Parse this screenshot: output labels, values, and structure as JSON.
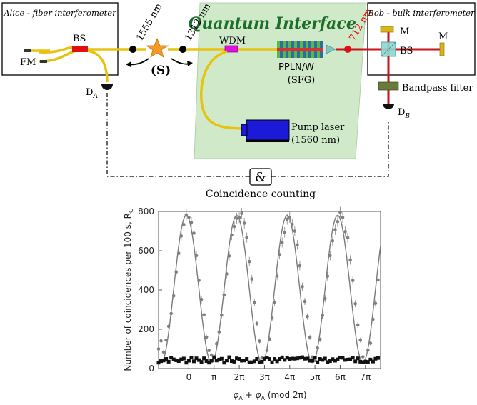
{
  "setup": {
    "alice_title": "Alice - fiber interferometer",
    "bob_title": "Bob - bulk interferometer",
    "interface_title": "Quantum Interface",
    "fm": "FM",
    "bs_alice": "BS",
    "bs_bob": "BS",
    "mirror_top": "M",
    "mirror_right": "M",
    "detector_a": "D",
    "detector_a_sub": "A",
    "detector_b": "D",
    "detector_b_sub": "B",
    "wl_1555": "1555 nm",
    "wl_1312": "1312 nm",
    "wl_712": "712 nm",
    "source_label": "(S)",
    "wdm": "WDM",
    "ppln_line1": "PPLN/W",
    "ppln_line2": "(SFG)",
    "pump_line1": "Pump laser",
    "pump_line2": "(1560 nm)",
    "bandpass": "Bandpass filter",
    "and_symbol": "&",
    "coincidence": "Coincidence counting"
  },
  "chart_data": {
    "type": "scatter",
    "title": "",
    "ylabel": "Number of coincidences per 100 s, R",
    "ylabel_sub": "C",
    "xlabel": "φA + φA (mod 2π)",
    "xlabel_parts": [
      "φ",
      "A",
      " + ",
      "φ",
      "A",
      " (mod 2π)"
    ],
    "xunit": "pi",
    "xlim": [
      -1.2,
      7.6
    ],
    "ylim": [
      0,
      800
    ],
    "xticks": [
      0,
      1,
      2,
      3,
      4,
      5,
      6,
      7
    ],
    "xtick_labels": [
      "0",
      "π",
      "2π",
      "3π",
      "4π",
      "5π",
      "6π",
      "7π"
    ],
    "yticks": [
      0,
      200,
      400,
      600,
      800
    ],
    "ytick_labels": [
      "0",
      "200",
      "400",
      "600",
      "800"
    ],
    "grid": false,
    "series": [
      {
        "marker": "circle",
        "color": "#808080",
        "fit": {
          "offset": 405,
          "amplitude": 375,
          "phase_shift_pi": -0.1
        },
        "x": [
          -1.2,
          -1.1,
          -1.0,
          -0.9,
          -0.8,
          -0.7,
          -0.6,
          -0.5,
          -0.4,
          -0.3,
          -0.2,
          -0.1,
          0.0,
          0.1,
          0.2,
          0.3,
          0.4,
          0.5,
          0.6,
          0.7,
          0.8,
          0.9,
          1.0,
          1.1,
          1.2,
          1.3,
          1.4,
          1.5,
          1.6,
          1.7,
          1.8,
          1.9,
          2.0,
          2.1,
          2.2,
          2.3,
          2.4,
          2.5,
          2.6,
          2.7,
          2.8,
          2.9,
          3.0,
          3.1,
          3.2,
          3.3,
          3.4,
          3.5,
          3.6,
          3.7,
          3.8,
          3.9,
          4.0,
          4.1,
          4.2,
          4.3,
          4.4,
          4.5,
          4.6,
          4.7,
          4.8,
          4.9,
          5.0,
          5.1,
          5.2,
          5.3,
          5.4,
          5.5,
          5.6,
          5.7,
          5.8,
          5.9,
          6.0,
          6.1,
          6.2,
          6.3,
          6.4,
          6.5,
          6.6,
          6.7,
          6.8,
          6.9,
          7.0,
          7.1,
          7.2,
          7.3,
          7.4,
          7.5
        ],
        "y": [
          100,
          141,
          84,
          145,
          215,
          280,
          370,
          492,
          587,
          675,
          733,
          782,
          770,
          744,
          689,
          575,
          449,
          352,
          274,
          160,
          92,
          69,
          60,
          126,
          187,
          272,
          375,
          482,
          573,
          680,
          723,
          765,
          768,
          790,
          740,
          667,
          545,
          456,
          337,
          229,
          140,
          55,
          45,
          93,
          150,
          257,
          336,
          471,
          580,
          642,
          694,
          760,
          770,
          735,
          700,
          630,
          523,
          417,
          342,
          265,
          159,
          59,
          41,
          105,
          148,
          271,
          356,
          470,
          575,
          650,
          707,
          748,
          796,
          769,
          697,
          666,
          553,
          448,
          330,
          222,
          145,
          60,
          40,
          93,
          129,
          251,
          332,
          451
        ]
      },
      {
        "marker": "square",
        "color": "#111111",
        "x": [
          -1.2,
          -1.1,
          -1.0,
          -0.9,
          -0.8,
          -0.7,
          -0.6,
          -0.5,
          -0.4,
          -0.3,
          -0.2,
          -0.1,
          0.0,
          0.1,
          0.2,
          0.3,
          0.4,
          0.5,
          0.6,
          0.7,
          0.8,
          0.9,
          1.0,
          1.1,
          1.2,
          1.3,
          1.4,
          1.5,
          1.6,
          1.7,
          1.8,
          1.9,
          2.0,
          2.1,
          2.2,
          2.3,
          2.4,
          2.5,
          2.6,
          2.7,
          2.8,
          2.9,
          3.0,
          3.1,
          3.2,
          3.3,
          3.4,
          3.5,
          3.6,
          3.7,
          3.8,
          3.9,
          4.0,
          4.1,
          4.2,
          4.3,
          4.4,
          4.5,
          4.6,
          4.7,
          4.8,
          4.9,
          5.0,
          5.1,
          5.2,
          5.3,
          5.4,
          5.5,
          5.6,
          5.7,
          5.8,
          5.9,
          6.0,
          6.1,
          6.2,
          6.3,
          6.4,
          6.5,
          6.6,
          6.7,
          6.8,
          6.9,
          7.0,
          7.1,
          7.2,
          7.3,
          7.4,
          7.5
        ],
        "y": [
          30,
          38,
          41,
          49,
          35,
          56,
          47,
          42,
          38,
          47,
          51,
          30,
          40,
          56,
          37,
          52,
          43,
          34,
          52,
          38,
          30,
          41,
          57,
          41,
          46,
          50,
          30,
          41,
          58,
          38,
          35,
          52,
          49,
          40,
          41,
          49,
          32,
          32,
          37,
          49,
          32,
          35,
          50,
          56,
          49,
          32,
          49,
          37,
          49,
          57,
          44,
          55,
          49,
          51,
          50,
          52,
          55,
          58,
          50,
          51,
          40,
          40,
          56,
          32,
          49,
          44,
          51,
          33,
          38,
          48,
          40,
          47,
          56,
          55,
          44,
          46,
          47,
          56,
          37,
          52,
          35,
          32,
          35,
          34,
          46,
          36,
          50,
          54
        ]
      }
    ]
  }
}
